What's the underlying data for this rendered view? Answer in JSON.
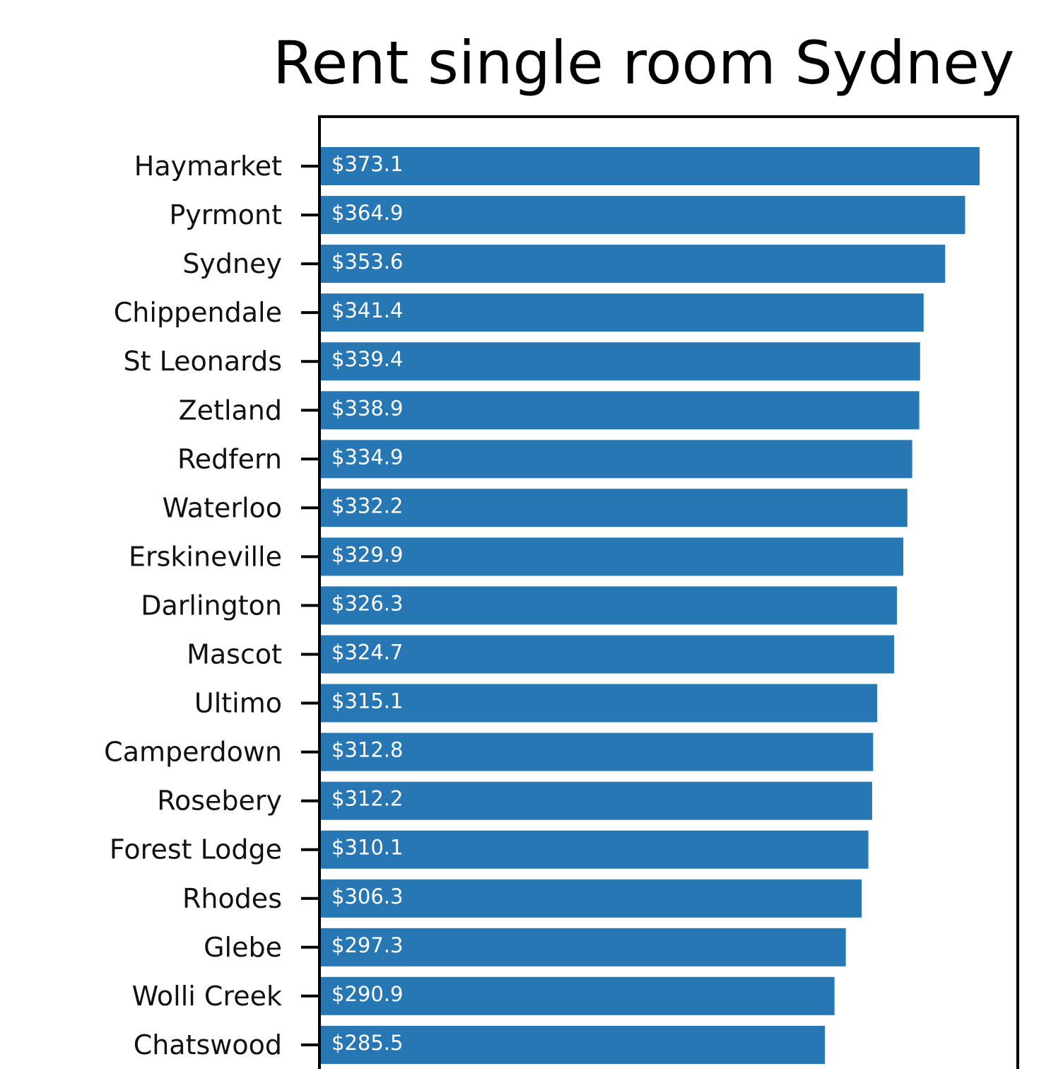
{
  "chart_data": {
    "type": "bar",
    "orientation": "horizontal",
    "title": "Rent single room Sydney",
    "categories": [
      "Haymarket",
      "Pyrmont",
      "Sydney",
      "Chippendale",
      "St Leonards",
      "Zetland",
      "Redfern",
      "Waterloo",
      "Erskineville",
      "Darlington",
      "Mascot",
      "Ultimo",
      "Camperdown",
      "Rosebery",
      "Forest Lodge",
      "Rhodes",
      "Glebe",
      "Wolli Creek",
      "Chatswood"
    ],
    "values": [
      373.1,
      364.9,
      353.6,
      341.4,
      339.4,
      338.9,
      334.9,
      332.2,
      329.9,
      326.3,
      324.7,
      315.1,
      312.8,
      312.2,
      310.1,
      306.3,
      297.3,
      290.9,
      285.5
    ],
    "data_labels": [
      "$373.1",
      "$364.9",
      "$353.6",
      "$341.4",
      "$339.4",
      "$338.9",
      "$334.9",
      "$332.2",
      "$329.9",
      "$326.3",
      "$324.7",
      "$315.1",
      "$312.8",
      "$312.2",
      "$310.1",
      "$306.3",
      "$297.3",
      "$290.9",
      "$285.5"
    ],
    "xlabel": "",
    "ylabel": "",
    "xlim": [
      0,
      391
    ],
    "grid": false,
    "bar_color": "#2777b4",
    "data_label_color": "#ffffff"
  }
}
